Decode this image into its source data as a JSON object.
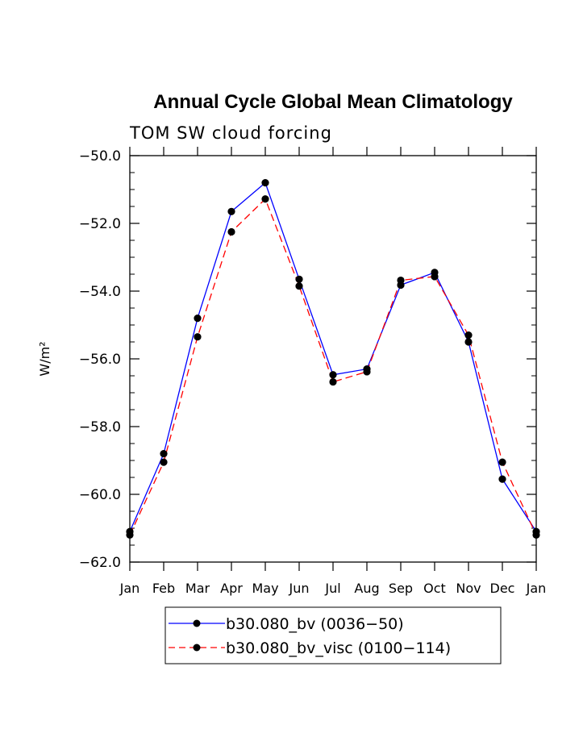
{
  "chart_data": {
    "type": "line",
    "title": "Annual Cycle Global Mean Climatology",
    "subtitle": "TOM SW cloud forcing",
    "ylabel": "W/m²",
    "xlabel": "",
    "categories": [
      "Jan",
      "Feb",
      "Mar",
      "Apr",
      "May",
      "Jun",
      "Jul",
      "Aug",
      "Sep",
      "Oct",
      "Nov",
      "Dec",
      "Jan"
    ],
    "ylim": [
      -62.0,
      -50.0
    ],
    "yticks": [
      "−50.0",
      "−52.0",
      "−54.0",
      "−56.0",
      "−58.0",
      "−60.0",
      "−62.0"
    ],
    "ytick_values": [
      -50,
      -52,
      -54,
      -56,
      -58,
      -60,
      -62
    ],
    "grid": false,
    "legend_position": "bottom",
    "series": [
      {
        "name": "b30.080_bv (0036−50)",
        "color": "#0000ff",
        "dash": "solid",
        "marker": "filled-circle",
        "values": [
          -61.1,
          -58.8,
          -54.8,
          -51.65,
          -50.8,
          -53.65,
          -56.47,
          -56.3,
          -53.82,
          -53.45,
          -55.5,
          -59.55,
          -61.1
        ]
      },
      {
        "name": "b30.080_bv_visc (0100−114)",
        "color": "#ff0000",
        "dash": "dashed",
        "marker": "filled-circle",
        "values": [
          -61.2,
          -59.05,
          -55.35,
          -52.25,
          -51.28,
          -53.85,
          -56.68,
          -56.38,
          -53.68,
          -53.57,
          -55.3,
          -59.05,
          -61.2
        ]
      }
    ]
  }
}
